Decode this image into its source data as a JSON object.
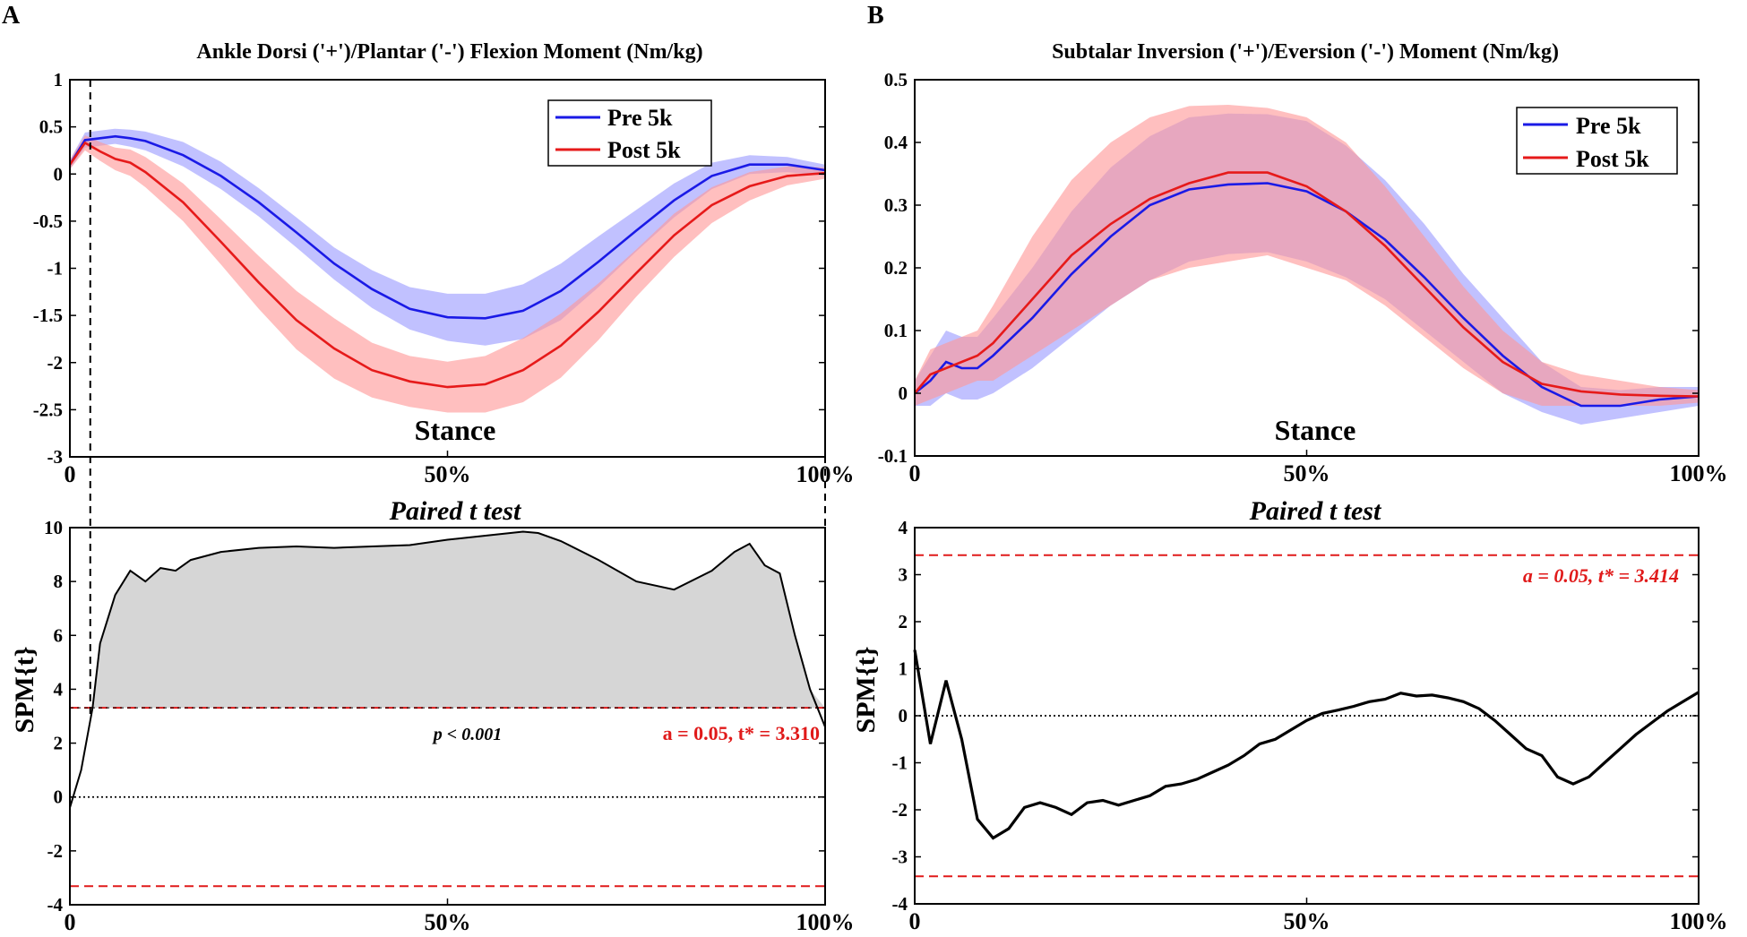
{
  "figure": {
    "panel_labels": [
      "A",
      "B"
    ],
    "colors": {
      "pre_line": "#1a1ae6",
      "pre_band": "#9b9bff",
      "post_line": "#e61a1a",
      "post_band": "#ff9898",
      "spm_line": "#000000",
      "spm_fill": "#d6d6d6",
      "threshold": "#e01a1a"
    }
  },
  "chart_data": [
    {
      "id": "A-top",
      "type": "line",
      "title": "Ankle Dorsi ('+')/Plantar ('-') Flexion Moment (Nm/kg)",
      "xlabel": "Stance",
      "ylabel": "",
      "xlim": [
        0,
        100
      ],
      "ylim": [
        -3,
        1
      ],
      "x_ticks": [
        0,
        50,
        100
      ],
      "x_tick_labels": [
        "0",
        "50%",
        "100%"
      ],
      "y_ticks": [
        -3,
        -2.5,
        -2,
        -1.5,
        -1,
        -0.5,
        0,
        0.5,
        1
      ],
      "y_tick_labels": [
        "-3",
        "-2.5",
        "-2",
        "-1.5",
        "-1",
        "-0.5",
        "0",
        "0.5",
        "1"
      ],
      "legend": [
        "Pre 5k",
        "Post 5k"
      ],
      "legend_position": "top-right",
      "vlines": [
        2.7,
        100
      ],
      "x": [
        0,
        2,
        4,
        6,
        8,
        10,
        15,
        20,
        25,
        30,
        35,
        40,
        45,
        50,
        55,
        60,
        65,
        70,
        75,
        80,
        85,
        90,
        95,
        100
      ],
      "series": [
        {
          "name": "Pre 5k",
          "values": [
            0.1,
            0.36,
            0.38,
            0.4,
            0.38,
            0.35,
            0.2,
            -0.02,
            -0.3,
            -0.62,
            -0.95,
            -1.22,
            -1.43,
            -1.52,
            -1.53,
            -1.45,
            -1.24,
            -0.93,
            -0.6,
            -0.28,
            -0.02,
            0.1,
            0.1,
            0.04
          ],
          "lower": [
            0.05,
            0.28,
            0.3,
            0.32,
            0.29,
            0.25,
            0.08,
            -0.16,
            -0.45,
            -0.78,
            -1.12,
            -1.42,
            -1.65,
            -1.77,
            -1.82,
            -1.75,
            -1.55,
            -1.2,
            -0.82,
            -0.46,
            -0.16,
            0.0,
            0.02,
            -0.02
          ],
          "upper": [
            0.15,
            0.44,
            0.46,
            0.48,
            0.47,
            0.45,
            0.34,
            0.13,
            -0.15,
            -0.46,
            -0.78,
            -1.02,
            -1.2,
            -1.27,
            -1.27,
            -1.17,
            -0.95,
            -0.66,
            -0.38,
            -0.1,
            0.12,
            0.2,
            0.18,
            0.1
          ]
        },
        {
          "name": "Post 5k",
          "values": [
            0.1,
            0.33,
            0.24,
            0.16,
            0.12,
            0.02,
            -0.3,
            -0.72,
            -1.15,
            -1.55,
            -1.85,
            -2.08,
            -2.2,
            -2.26,
            -2.23,
            -2.08,
            -1.82,
            -1.46,
            -1.05,
            -0.65,
            -0.33,
            -0.13,
            -0.02,
            0.01
          ],
          "lower": [
            0.05,
            0.25,
            0.14,
            0.04,
            -0.02,
            -0.14,
            -0.5,
            -0.96,
            -1.43,
            -1.86,
            -2.17,
            -2.37,
            -2.47,
            -2.53,
            -2.53,
            -2.42,
            -2.16,
            -1.76,
            -1.3,
            -0.88,
            -0.52,
            -0.28,
            -0.12,
            -0.05
          ],
          "upper": [
            0.15,
            0.41,
            0.34,
            0.28,
            0.26,
            0.18,
            -0.1,
            -0.48,
            -0.87,
            -1.24,
            -1.53,
            -1.79,
            -1.93,
            -1.99,
            -1.93,
            -1.74,
            -1.48,
            -1.16,
            -0.8,
            -0.42,
            -0.14,
            0.02,
            0.08,
            0.07
          ]
        }
      ]
    },
    {
      "id": "B-top",
      "type": "line",
      "title": "Subtalar Inversion ('+')/Eversion ('-') Moment (Nm/kg)",
      "xlabel": "Stance",
      "ylabel": "",
      "xlim": [
        0,
        100
      ],
      "ylim": [
        -0.1,
        0.5
      ],
      "x_ticks": [
        0,
        50,
        100
      ],
      "x_tick_labels": [
        "0",
        "50%",
        "100%"
      ],
      "y_ticks": [
        -0.1,
        0,
        0.1,
        0.2,
        0.3,
        0.4,
        0.5
      ],
      "y_tick_labels": [
        "-0.1",
        "0",
        "0.1",
        "0.2",
        "0.3",
        "0.4",
        "0.5"
      ],
      "legend": [
        "Pre 5k",
        "Post 5k"
      ],
      "legend_position": "top-right",
      "x": [
        0,
        2,
        4,
        6,
        8,
        10,
        15,
        20,
        25,
        30,
        35,
        40,
        45,
        50,
        55,
        60,
        65,
        70,
        75,
        80,
        85,
        90,
        95,
        100
      ],
      "series": [
        {
          "name": "Pre 5k",
          "values": [
            0.0,
            0.02,
            0.05,
            0.04,
            0.04,
            0.06,
            0.12,
            0.19,
            0.25,
            0.3,
            0.325,
            0.333,
            0.335,
            0.322,
            0.29,
            0.245,
            0.185,
            0.12,
            0.06,
            0.01,
            -0.02,
            -0.02,
            -0.01,
            -0.005
          ],
          "lower": [
            -0.02,
            -0.02,
            0.0,
            -0.01,
            -0.01,
            0.0,
            0.04,
            0.09,
            0.14,
            0.18,
            0.21,
            0.222,
            0.225,
            0.21,
            0.185,
            0.15,
            0.1,
            0.05,
            0.0,
            -0.03,
            -0.05,
            -0.04,
            -0.03,
            -0.02
          ],
          "upper": [
            0.02,
            0.06,
            0.1,
            0.09,
            0.09,
            0.12,
            0.2,
            0.29,
            0.36,
            0.41,
            0.44,
            0.446,
            0.445,
            0.434,
            0.395,
            0.34,
            0.27,
            0.19,
            0.12,
            0.05,
            0.01,
            0.005,
            0.01,
            0.01
          ]
        },
        {
          "name": "Post 5k",
          "values": [
            0.0,
            0.03,
            0.04,
            0.05,
            0.06,
            0.08,
            0.15,
            0.22,
            0.27,
            0.31,
            0.335,
            0.352,
            0.352,
            0.33,
            0.29,
            0.235,
            0.17,
            0.105,
            0.05,
            0.015,
            0.003,
            -0.002,
            -0.004,
            -0.005
          ],
          "lower": [
            -0.02,
            -0.01,
            0.0,
            0.01,
            0.02,
            0.02,
            0.06,
            0.1,
            0.14,
            0.18,
            0.2,
            0.21,
            0.22,
            0.2,
            0.18,
            0.14,
            0.09,
            0.04,
            0.0,
            -0.02,
            -0.02,
            -0.02,
            -0.02,
            -0.015
          ],
          "upper": [
            0.02,
            0.07,
            0.08,
            0.09,
            0.1,
            0.14,
            0.25,
            0.34,
            0.4,
            0.44,
            0.458,
            0.46,
            0.455,
            0.44,
            0.4,
            0.33,
            0.25,
            0.17,
            0.1,
            0.05,
            0.03,
            0.02,
            0.01,
            0.005
          ]
        }
      ]
    },
    {
      "id": "A-bottom",
      "type": "area",
      "title": "Paired t test",
      "xlabel": "",
      "ylabel": "SPM{t}",
      "xlim": [
        0,
        100
      ],
      "ylim": [
        -4,
        10
      ],
      "x_ticks": [
        0,
        50,
        100
      ],
      "x_tick_labels": [
        "0",
        "50%",
        "100%"
      ],
      "y_ticks": [
        -4,
        -2,
        0,
        2,
        4,
        6,
        8,
        10
      ],
      "y_tick_labels": [
        "-4",
        "-2",
        "0",
        "2",
        "4",
        "6",
        "8",
        "10"
      ],
      "threshold": 3.31,
      "threshold_label": "a = 0.05, t* = 3.310",
      "p_label": "p < 0.001",
      "vlines": [
        2.7,
        100
      ],
      "x": [
        0,
        1.5,
        3,
        4,
        6,
        8,
        10,
        12,
        14,
        16,
        20,
        25,
        30,
        35,
        40,
        45,
        50,
        55,
        60,
        62,
        65,
        70,
        75,
        80,
        85,
        88,
        90,
        92,
        94,
        96,
        98,
        100
      ],
      "values": [
        -0.4,
        1.0,
        3.3,
        5.7,
        7.5,
        8.4,
        8.0,
        8.5,
        8.4,
        8.8,
        9.1,
        9.25,
        9.3,
        9.25,
        9.3,
        9.35,
        9.55,
        9.7,
        9.85,
        9.8,
        9.5,
        8.8,
        8.0,
        7.7,
        8.4,
        9.1,
        9.4,
        8.6,
        8.3,
        6.0,
        4.0,
        2.6
      ]
    },
    {
      "id": "B-bottom",
      "type": "line",
      "title": "Paired t test",
      "xlabel": "",
      "ylabel": "SPM{t}",
      "xlim": [
        0,
        100
      ],
      "ylim": [
        -4,
        4
      ],
      "x_ticks": [
        0,
        50,
        100
      ],
      "x_tick_labels": [
        "0",
        "50%",
        "100%"
      ],
      "y_ticks": [
        -4,
        -3,
        -2,
        -1,
        0,
        1,
        2,
        3,
        4
      ],
      "y_tick_labels": [
        "-4",
        "-3",
        "-2",
        "-1",
        "0",
        "1",
        "2",
        "3",
        "4"
      ],
      "threshold": 3.414,
      "threshold_label": "a = 0.05, t* = 3.414",
      "x": [
        0,
        2,
        4,
        6,
        8,
        10,
        12,
        14,
        16,
        18,
        20,
        22,
        24,
        26,
        28,
        30,
        32,
        34,
        36,
        38,
        40,
        42,
        44,
        46,
        48,
        50,
        52,
        54,
        56,
        58,
        60,
        62,
        64,
        66,
        68,
        70,
        72,
        74,
        76,
        78,
        80,
        82,
        84,
        86,
        88,
        90,
        92,
        94,
        96,
        98,
        100
      ],
      "values": [
        1.4,
        -0.6,
        0.75,
        -0.5,
        -2.2,
        -2.6,
        -2.4,
        -1.95,
        -1.85,
        -1.95,
        -2.1,
        -1.85,
        -1.8,
        -1.9,
        -1.8,
        -1.7,
        -1.5,
        -1.45,
        -1.35,
        -1.2,
        -1.05,
        -0.85,
        -0.6,
        -0.5,
        -0.3,
        -0.1,
        0.05,
        0.12,
        0.2,
        0.3,
        0.35,
        0.48,
        0.42,
        0.44,
        0.38,
        0.3,
        0.15,
        -0.1,
        -0.4,
        -0.7,
        -0.85,
        -1.3,
        -1.45,
        -1.3,
        -1.0,
        -0.7,
        -0.4,
        -0.15,
        0.1,
        0.3,
        0.5
      ]
    }
  ]
}
